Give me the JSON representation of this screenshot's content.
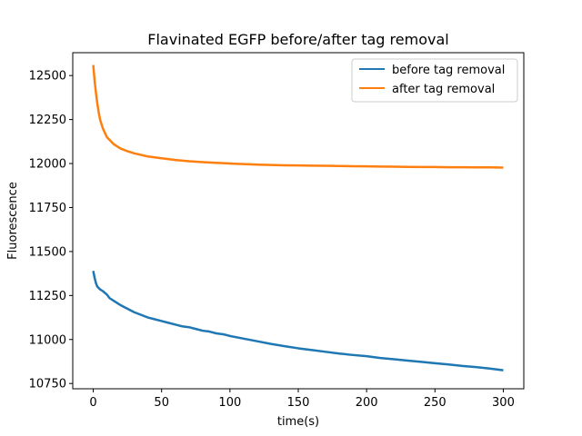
{
  "chart_data": {
    "type": "line",
    "title": "Flavinated EGFP before/after tag removal",
    "xlabel": "time(s)",
    "ylabel": "Fluorescence",
    "xlim": [
      -15,
      315
    ],
    "ylim": [
      10720,
      12630
    ],
    "xticks": [
      0,
      50,
      100,
      150,
      200,
      250,
      300
    ],
    "yticks": [
      10750,
      11000,
      11250,
      11500,
      11750,
      12000,
      12250,
      12500
    ],
    "grid": false,
    "legend_position": "top-right",
    "series": [
      {
        "name": "before tag removal",
        "color": "#1f77b4",
        "x": [
          0,
          1,
          2,
          3,
          5,
          7,
          10,
          12,
          15,
          18,
          20,
          25,
          30,
          35,
          40,
          45,
          50,
          55,
          60,
          65,
          70,
          75,
          80,
          85,
          90,
          95,
          100,
          110,
          120,
          130,
          140,
          150,
          160,
          170,
          180,
          190,
          200,
          210,
          220,
          230,
          240,
          250,
          260,
          270,
          280,
          290,
          300
        ],
        "y": [
          11390,
          11350,
          11320,
          11300,
          11285,
          11275,
          11255,
          11235,
          11220,
          11205,
          11195,
          11175,
          11155,
          11140,
          11125,
          11115,
          11105,
          11095,
          11085,
          11075,
          11070,
          11060,
          11050,
          11045,
          11035,
          11030,
          11020,
          11005,
          10990,
          10975,
          10962,
          10950,
          10940,
          10930,
          10920,
          10912,
          10905,
          10895,
          10888,
          10880,
          10873,
          10865,
          10858,
          10850,
          10843,
          10835,
          10825
        ]
      },
      {
        "name": "after tag removal",
        "color": "#ff7f0e",
        "x": [
          0,
          1,
          2,
          3,
          4,
          5,
          7,
          10,
          15,
          20,
          25,
          30,
          40,
          50,
          60,
          70,
          80,
          90,
          100,
          110,
          120,
          130,
          140,
          150,
          160,
          170,
          180,
          190,
          200,
          210,
          220,
          230,
          240,
          250,
          260,
          270,
          280,
          290,
          300
        ],
        "y": [
          12560,
          12470,
          12400,
          12340,
          12290,
          12250,
          12200,
          12150,
          12110,
          12085,
          12070,
          12058,
          12040,
          12030,
          12020,
          12013,
          12008,
          12004,
          12000,
          11997,
          11994,
          11992,
          11990,
          11989,
          11988,
          11987,
          11986,
          11985,
          11984,
          11983,
          11982,
          11981,
          11980,
          11980,
          11979,
          11979,
          11978,
          11978,
          11977
        ]
      }
    ]
  }
}
